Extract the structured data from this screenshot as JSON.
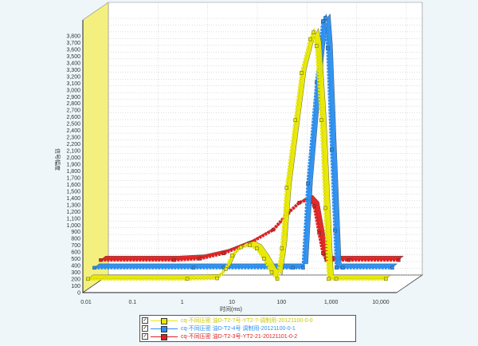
{
  "chart_data": {
    "type": "line",
    "xlabel": "时间(ms)",
    "ylabel": "信号幅度",
    "xscale": "log",
    "xlim": [
      0.01,
      10000
    ],
    "ylim": [
      0,
      3800
    ],
    "grid": true,
    "legend_position": "bottom",
    "x_ticks": [
      "0.01",
      "0.1",
      "1",
      "10",
      "100",
      "1,000",
      "10,000"
    ],
    "y_ticks": [
      "0",
      "100",
      "200",
      "300",
      "400",
      "500",
      "600",
      "700",
      "800",
      "900",
      "1,000",
      "1,100",
      "1,200",
      "1,300",
      "1,400",
      "1,500",
      "1,600",
      "1,700",
      "1,800",
      "1,900",
      "2,000",
      "2,100",
      "2,200",
      "2,300",
      "2,400",
      "2,500",
      "2,600",
      "2,700",
      "2,800",
      "2,900",
      "3,000",
      "3,100",
      "3,200",
      "3,300",
      "3,400",
      "3,500",
      "3,600",
      "3,700",
      "3,800"
    ],
    "series": [
      {
        "name": "cq-不同压密 油D-T2-?号-YT2-?-调制用-20121100-0-0",
        "color": "#e8e800",
        "x": [
          0.01,
          1,
          4,
          6,
          8,
          12,
          18,
          25,
          35,
          50,
          65,
          80,
          100,
          150,
          200,
          300,
          350,
          400,
          500,
          600,
          700,
          1000,
          10000
        ],
        "values": [
          150,
          150,
          160,
          300,
          500,
          620,
          650,
          600,
          450,
          250,
          150,
          600,
          1500,
          2500,
          3200,
          3700,
          3800,
          3600,
          2500,
          1200,
          150,
          150,
          150
        ]
      },
      {
        "name": "cq-不同压密 油D-T2-4号 调制用-20121100-0-1",
        "color": "#2a8ff0",
        "x": [
          0.01,
          1,
          4,
          100,
          160,
          200,
          300,
          400,
          450,
          500,
          600,
          700,
          750,
          1000,
          10000
        ],
        "values": [
          250,
          250,
          250,
          250,
          250,
          1500,
          3000,
          3900,
          3950,
          3500,
          2000,
          800,
          250,
          250,
          250
        ]
      },
      {
        "name": "cq-不同压密 油D-T2-3号-YT2-21-20121101-0-2",
        "color": "#e02020",
        "x": [
          0.01,
          0.3,
          1,
          3,
          10,
          30,
          60,
          100,
          150,
          200,
          250,
          300,
          350,
          1000,
          10000
        ],
        "values": [
          300,
          300,
          320,
          400,
          550,
          750,
          1000,
          1150,
          1200,
          1100,
          700,
          400,
          300,
          300,
          300
        ]
      }
    ]
  }
}
